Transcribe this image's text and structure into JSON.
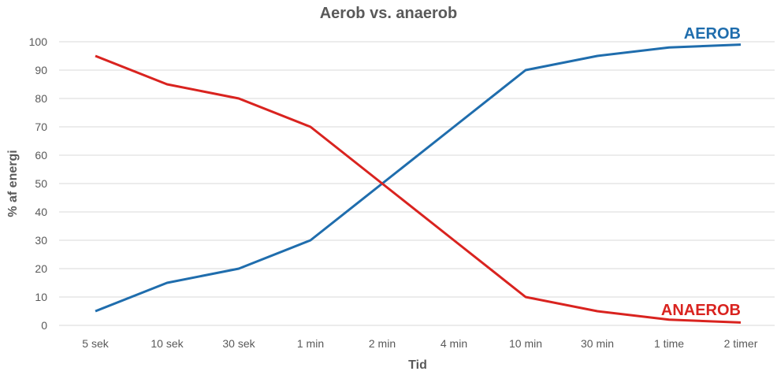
{
  "chart_data": {
    "type": "line",
    "title": "Aerob vs. anaerob",
    "xlabel": "Tid",
    "ylabel": "% af energi",
    "categories": [
      "5 sek",
      "10 sek",
      "30 sek",
      "1 min",
      "2 min",
      "4 min",
      "10 min",
      "30 min",
      "1 time",
      "2 timer"
    ],
    "ylim": [
      0,
      100
    ],
    "yticks": [
      "0",
      "10",
      "20",
      "30",
      "40",
      "50",
      "60",
      "70",
      "80",
      "90",
      "100"
    ],
    "grid": true,
    "series": [
      {
        "name": "AEROB",
        "color": "#1F6DAD",
        "values": [
          5,
          15,
          20,
          30,
          50,
          70,
          90,
          95,
          98,
          99
        ]
      },
      {
        "name": "ANAEROB",
        "color": "#D9231F",
        "values": [
          95,
          85,
          80,
          70,
          50,
          30,
          10,
          5,
          2,
          1
        ]
      }
    ]
  }
}
